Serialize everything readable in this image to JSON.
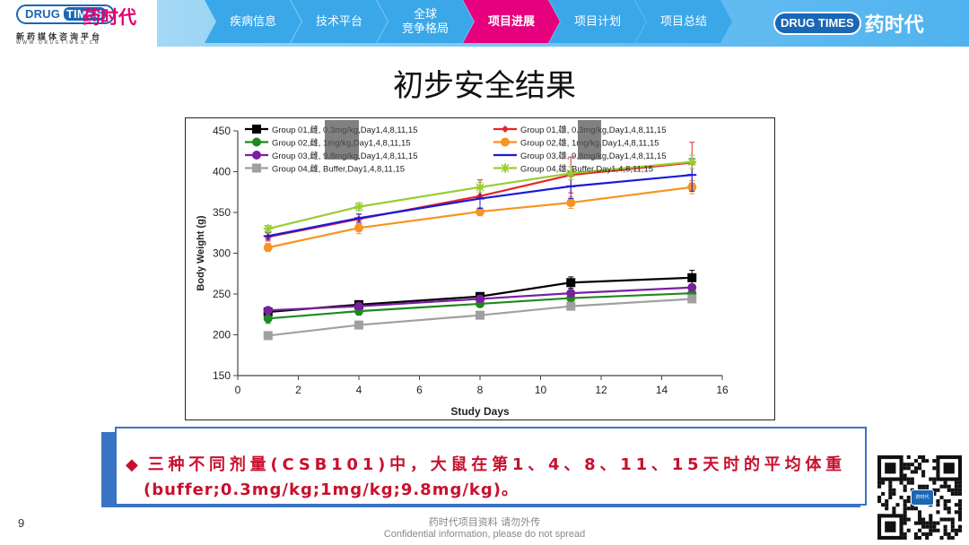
{
  "header": {
    "logo_left": {
      "brand_en_1": "DRUG",
      "brand_en_2": "TIMES",
      "brand_cn": "药时代",
      "tagline": "新药媒体咨询平台",
      "url": "WWW.DRUGTIMES.CN"
    },
    "tabs": [
      {
        "label": "疾病信息",
        "active": false
      },
      {
        "label": "技术平台",
        "active": false
      },
      {
        "label": "全球\n竞争格局",
        "active": false
      },
      {
        "label": "项目进展",
        "active": true
      },
      {
        "label": "项目计划",
        "active": false
      },
      {
        "label": "项目总结",
        "active": false
      }
    ],
    "logo_right": {
      "brand_en_1": "DRUG",
      "brand_en_2": "TIMES",
      "brand_cn": "药时代"
    },
    "colors": {
      "active_tab": "#e6007e",
      "tab_bg": "#3aa7e8"
    }
  },
  "page_title": "初步安全结果",
  "chart_data": {
    "type": "line",
    "xlabel": "Study Days",
    "ylabel": "Body Weight (g)",
    "xlim": [
      0,
      16
    ],
    "ylim": [
      150,
      450
    ],
    "xticks": [
      0,
      2,
      4,
      6,
      8,
      10,
      12,
      14,
      16
    ],
    "yticks": [
      150,
      200,
      250,
      300,
      350,
      400,
      450
    ],
    "x": [
      1,
      4,
      8,
      11,
      15
    ],
    "legend_placement": "top",
    "series": [
      {
        "name": "Group 01,雌, 0.3mg/kg,Day1,4,8,11,15",
        "color": "#000000",
        "marker": "square",
        "values": [
          228,
          237,
          247,
          264,
          270
        ],
        "err": [
          4,
          4,
          4,
          7,
          9
        ]
      },
      {
        "name": "Group 02,雌, 1mg/kg,Day1,4,8,11,15",
        "color": "#1e8a1e",
        "marker": "circle",
        "values": [
          220,
          229,
          238,
          245,
          251
        ],
        "err": [
          6,
          5,
          4,
          3,
          3
        ]
      },
      {
        "name": "Group 03,雌, 9.8mg/kg,Day1,4,8,11,15",
        "color": "#7a1fa2",
        "marker": "circle",
        "values": [
          230,
          235,
          244,
          251,
          258
        ],
        "err": [
          3,
          3,
          3,
          3,
          3
        ]
      },
      {
        "name": "Group 04,雌, Buffer,Day1,4,8,11,15",
        "color": "#a0a0a0",
        "marker": "square",
        "values": [
          199,
          212,
          224,
          235,
          244
        ],
        "err": [
          3,
          4,
          4,
          4,
          5
        ]
      },
      {
        "name": "Group 01,雄, 0.3mg/kg,Day1,4,8,11,15",
        "color": "#e8242b",
        "marker": "diamond",
        "values": [
          320,
          342,
          370,
          396,
          411
        ],
        "err": [
          5,
          6,
          20,
          22,
          25
        ]
      },
      {
        "name": "Group 02,雄, 1mg/kg,Day1,4,8,11,15",
        "color": "#f79520",
        "marker": "circle",
        "values": [
          307,
          331,
          351,
          362,
          381
        ],
        "err": [
          5,
          7,
          5,
          7,
          8
        ]
      },
      {
        "name": "Group 03,雄, 9.8mg/kg,Day1,4,8,11,15",
        "color": "#1a1ad6",
        "marker": "dash",
        "values": [
          321,
          343,
          367,
          382,
          396
        ],
        "err": [
          4,
          5,
          12,
          15,
          20
        ]
      },
      {
        "name": "Group 04,雄, Buffer,Day1,4,8,11,15",
        "color": "#9acd32",
        "marker": "star",
        "values": [
          330,
          357,
          381,
          398,
          412
        ],
        "err": [
          4,
          5,
          6,
          8,
          8
        ]
      }
    ]
  },
  "note": {
    "line1": "三种不同剂量(CSB101)中，大鼠在第1、4、8、11、15天时的平均体重",
    "line2": "(buffer;0.3mg/kg;1mg/kg;9.8mg/kg)。",
    "bullet": "◆",
    "color": "#c8102e"
  },
  "footer": {
    "page_number": "9",
    "cn": "药时代项目资料 请勿外传",
    "en": "Confidential information, please do not spread"
  },
  "qr": {
    "badge": "药时代"
  }
}
